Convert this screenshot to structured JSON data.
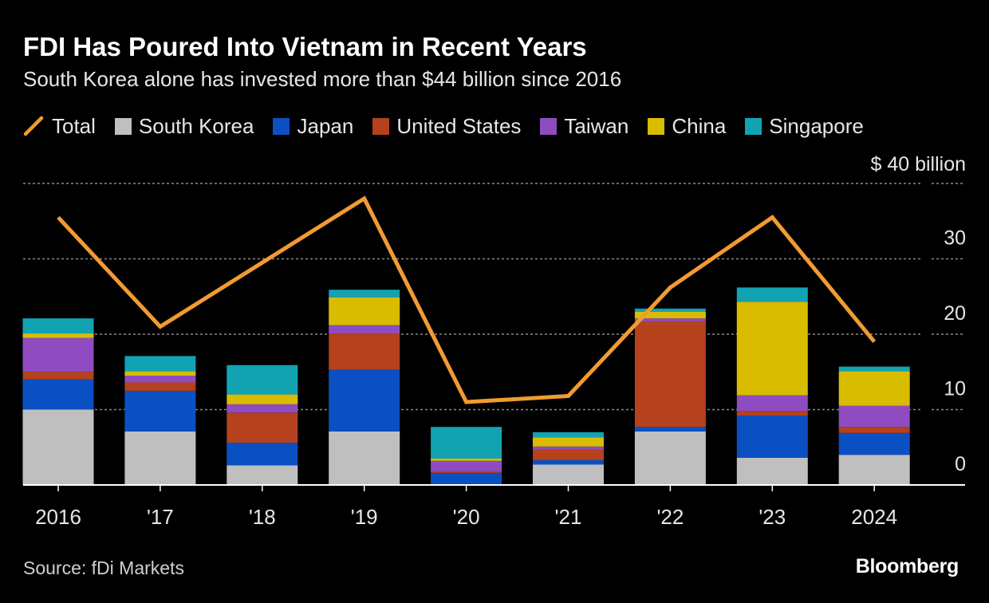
{
  "header": {
    "title": "FDI Has Poured Into Vietnam in Recent Years",
    "subtitle": "South Korea alone has invested more than $44 billion since 2016"
  },
  "legend": [
    {
      "label": "Total",
      "kind": "line",
      "color": "#f19b32"
    },
    {
      "label": "South Korea",
      "kind": "box",
      "color": "#bfbfbf"
    },
    {
      "label": "Japan",
      "kind": "box",
      "color": "#0a50c3"
    },
    {
      "label": "United States",
      "kind": "box",
      "color": "#b5411d"
    },
    {
      "label": "Taiwan",
      "kind": "box",
      "color": "#8f4cc0"
    },
    {
      "label": "China",
      "kind": "box",
      "color": "#d9bc00"
    },
    {
      "label": "Singapore",
      "kind": "box",
      "color": "#12a3b3"
    }
  ],
  "footer": {
    "source": "Source: fDi Markets",
    "brand": "Bloomberg"
  },
  "chart_data": {
    "type": "bar",
    "stacked": true,
    "title": "FDI Has Poured Into Vietnam in Recent Years",
    "subtitle": "South Korea alone has invested more than $44 billion since 2016",
    "categories": [
      "2016",
      "'17",
      "'18",
      "'19",
      "'20",
      "'21",
      "'22",
      "'23",
      "2024"
    ],
    "series": [
      {
        "name": "South Korea",
        "color": "#bfbfbf",
        "values": [
          10.0,
          7.1,
          2.6,
          7.1,
          0.0,
          2.7,
          7.1,
          3.6,
          4.0
        ]
      },
      {
        "name": "Japan",
        "color": "#0a50c3",
        "values": [
          4.0,
          5.4,
          3.0,
          8.2,
          1.6,
          0.6,
          0.6,
          5.6,
          2.9
        ]
      },
      {
        "name": "United States",
        "color": "#b5411d",
        "values": [
          1.0,
          1.1,
          4.0,
          4.8,
          0.2,
          1.4,
          14.0,
          0.6,
          0.8
        ]
      },
      {
        "name": "Taiwan",
        "color": "#8f4cc0",
        "values": [
          4.5,
          0.9,
          1.1,
          1.1,
          1.4,
          0.4,
          0.4,
          2.1,
          2.8
        ]
      },
      {
        "name": "China",
        "color": "#d9bc00",
        "values": [
          0.6,
          0.6,
          1.3,
          3.7,
          0.3,
          1.2,
          0.9,
          12.4,
          4.6
        ]
      },
      {
        "name": "Singapore",
        "color": "#12a3b3",
        "values": [
          2.0,
          2.0,
          3.9,
          1.0,
          4.2,
          0.7,
          0.4,
          1.9,
          0.6
        ]
      }
    ],
    "line": {
      "name": "Total",
      "color": "#f19b32",
      "values": [
        35.5,
        21.0,
        29.5,
        38.0,
        11.0,
        11.8,
        26.2,
        35.5,
        19.0
      ]
    },
    "y_axis": {
      "min": 0,
      "max": 40,
      "ticks": [
        0,
        10,
        20,
        30,
        40
      ],
      "tick_labels": [
        "0",
        "10",
        "20",
        "30",
        "$ 40 billion"
      ],
      "position": "right"
    },
    "xlabel": "",
    "ylabel": "",
    "grid": true
  }
}
